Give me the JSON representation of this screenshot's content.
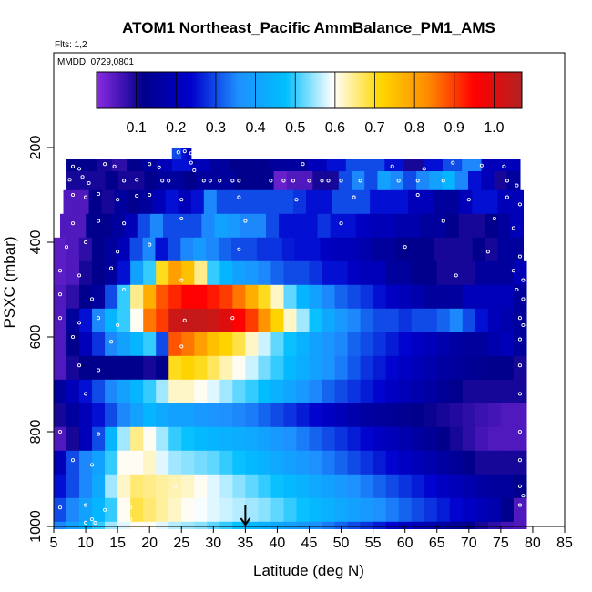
{
  "chart_data": {
    "type": "heatmap",
    "title": "ATOM1 Northeast_Pacific AmmBalance_PM1_AMS",
    "notes": [
      "Flts: 1,2",
      "MMDD: 0729,0801"
    ],
    "xlabel": "Latitude (deg N)",
    "ylabel": "PSXC (mbar)",
    "xlim": [
      5,
      85
    ],
    "ylim": [
      1000,
      0
    ],
    "x_ticks": [
      "5",
      "10",
      "15",
      "20",
      "25",
      "30",
      "35",
      "40",
      "45",
      "50",
      "55",
      "60",
      "65",
      "70",
      "75",
      "80",
      "85"
    ],
    "y_ticks": [
      "200",
      "400",
      "600",
      "800",
      "1000"
    ],
    "colorbar": {
      "range": [
        0.0,
        1.07
      ],
      "ticks": [
        "0.1",
        "0.2",
        "0.3",
        "0.4",
        "0.5",
        "0.6",
        "0.7",
        "0.8",
        "0.9",
        "1.0"
      ],
      "colors": [
        "#8a2be2",
        "#00008b",
        "#0000cd",
        "#1e90ff",
        "#00bfff",
        "#ffffff",
        "#ffd700",
        "#ff8c00",
        "#ff0000",
        "#b22222"
      ]
    },
    "grid": false,
    "marker": {
      "label": "arrow",
      "x": 35
    },
    "rows": [
      {
        "p": [
          200,
          225
        ],
        "x": [
          23.5,
          26.5
        ],
        "v": [
          0.3,
          0.3,
          0.25,
          0.2
        ]
      },
      {
        "p": [
          225,
          250
        ],
        "x": [
          7,
          23.5
        ],
        "v": [
          0.12,
          0.12,
          0.1,
          0.08,
          0.12,
          0.15,
          0.2
        ]
      },
      {
        "p": [
          225,
          250
        ],
        "x": [
          23.5,
          78
        ],
        "v": [
          0.25,
          0.2,
          0.15,
          0.12,
          0.12,
          0.15,
          0.15,
          0.2,
          0.25,
          0.3,
          0.3,
          0.25,
          0.1,
          0.25,
          0.3,
          0.35,
          0.2,
          0.2
        ]
      },
      {
        "p": [
          250,
          290
        ],
        "x": [
          7,
          78
        ],
        "v": [
          0.1,
          0.1,
          0.1,
          0.12,
          0.1,
          0.1,
          0.12,
          0.15,
          0.15,
          0.12,
          0.15,
          0.15,
          0.15,
          0.12,
          0.12,
          0.12,
          0.03,
          0.05,
          0.05,
          0.1,
          0.1,
          0.3,
          0.35,
          0.3,
          0.4,
          0.35,
          0.3,
          0.35,
          0.4,
          0.45,
          0.35,
          0.25,
          0.2,
          0.1,
          0.15
        ]
      },
      {
        "p": [
          290,
          340
        ],
        "x": [
          6.5,
          78.5
        ],
        "v": [
          0.05,
          0.05,
          0.12,
          0.1,
          0.15,
          0.12,
          0.15,
          0.2,
          0.25,
          0.2,
          0.25,
          0.35,
          0.3,
          0.3,
          0.3,
          0.3,
          0.3,
          0.3,
          0.28,
          0.25,
          0.25,
          0.3,
          0.3,
          0.3,
          0.25,
          0.25,
          0.25,
          0.2,
          0.2,
          0.15,
          0.15,
          0.2,
          0.25,
          0.25,
          0.2,
          0.2
        ]
      },
      {
        "p": [
          340,
          390
        ],
        "x": [
          6,
          78.5
        ],
        "v": [
          0.05,
          0.05,
          0.12,
          0.12,
          0.15,
          0.2,
          0.3,
          0.35,
          0.3,
          0.3,
          0.3,
          0.35,
          0.4,
          0.38,
          0.35,
          0.35,
          0.3,
          0.25,
          0.25,
          0.25,
          0.28,
          0.25,
          0.25,
          0.22,
          0.2,
          0.2,
          0.18,
          0.18,
          0.15,
          0.15,
          0.12,
          0.1,
          0.1,
          0.12,
          0.15,
          0.2
        ]
      },
      {
        "p": [
          390,
          440
        ],
        "x": [
          5,
          78.5
        ],
        "v": [
          0.04,
          0.05,
          0.08,
          0.12,
          0.15,
          0.2,
          0.3,
          0.35,
          0.25,
          0.3,
          0.35,
          0.38,
          0.35,
          0.32,
          0.3,
          0.3,
          0.28,
          0.28,
          0.26,
          0.25,
          0.25,
          0.22,
          0.2,
          0.2,
          0.18,
          0.15,
          0.15,
          0.12,
          0.12,
          0.12,
          0.1,
          0.1,
          0.1,
          0.12,
          0.1,
          0.15,
          0.15
        ]
      },
      {
        "p": [
          440,
          490
        ],
        "x": [
          5,
          79
        ],
        "v": [
          0.04,
          0.05,
          0.1,
          0.12,
          0.15,
          0.25,
          0.4,
          0.5,
          0.7,
          0.8,
          0.75,
          0.65,
          0.5,
          0.45,
          0.4,
          0.38,
          0.35,
          0.32,
          0.3,
          0.3,
          0.28,
          0.25,
          0.25,
          0.22,
          0.2,
          0.2,
          0.15,
          0.15,
          0.12,
          0.12,
          0.1,
          0.1,
          0.1,
          0.15,
          0.15,
          0.15,
          0.2
        ]
      },
      {
        "p": [
          490,
          540
        ],
        "x": [
          5,
          79
        ],
        "v": [
          0.05,
          0.08,
          0.12,
          0.15,
          0.3,
          0.5,
          0.65,
          0.78,
          0.88,
          0.92,
          0.95,
          0.95,
          0.93,
          0.9,
          0.85,
          0.78,
          0.7,
          0.62,
          0.52,
          0.45,
          0.4,
          0.35,
          0.32,
          0.3,
          0.28,
          0.25,
          0.22,
          0.2,
          0.18,
          0.15,
          0.15,
          0.15,
          0.2,
          0.2,
          0.2,
          0.2,
          0.15
        ]
      },
      {
        "p": [
          540,
          590
        ],
        "x": [
          5,
          79
        ],
        "v": [
          0.05,
          0.15,
          0.25,
          0.35,
          0.45,
          0.5,
          0.6,
          0.85,
          0.9,
          1.03,
          1.04,
          1.04,
          1.03,
          1.0,
          0.95,
          0.9,
          0.82,
          0.72,
          0.62,
          0.55,
          0.48,
          0.42,
          0.38,
          0.35,
          0.32,
          0.3,
          0.3,
          0.28,
          0.3,
          0.3,
          0.32,
          0.35,
          0.3,
          0.25,
          0.2,
          0.18,
          0.15
        ]
      },
      {
        "p": [
          590,
          640
        ],
        "x": [
          5,
          79
        ],
        "v": [
          0.05,
          0.12,
          0.2,
          0.28,
          0.35,
          0.4,
          0.45,
          0.5,
          0.3,
          0.88,
          0.85,
          0.8,
          0.75,
          0.72,
          0.68,
          0.62,
          0.57,
          0.52,
          0.48,
          0.44,
          0.4,
          0.37,
          0.35,
          0.32,
          0.3,
          0.28,
          0.26,
          0.24,
          0.22,
          0.2,
          0.18,
          0.16,
          0.15,
          0.15,
          0.18,
          0.2,
          0.15
        ]
      },
      {
        "p": [
          640,
          690
        ],
        "x": [
          5,
          79
        ],
        "v": [
          0.05,
          0.1,
          0.12,
          0.12,
          0.12,
          0.12,
          0.12,
          0.1,
          0.12,
          0.7,
          0.72,
          0.7,
          0.67,
          0.63,
          0.6,
          0.57,
          0.53,
          0.5,
          0.46,
          0.43,
          0.4,
          0.37,
          0.34,
          0.31,
          0.28,
          0.26,
          0.24,
          0.22,
          0.2,
          0.18,
          0.16,
          0.15,
          0.14,
          0.13,
          0.12,
          0.12,
          0.1
        ]
      },
      {
        "p": [
          690,
          740
        ],
        "x": [
          5,
          79
        ],
        "v": [
          0.15,
          0.2,
          0.25,
          0.3,
          0.35,
          0.4,
          0.45,
          0.5,
          0.55,
          0.62,
          0.62,
          0.6,
          0.58,
          0.55,
          0.52,
          0.5,
          0.47,
          0.44,
          0.41,
          0.38,
          0.35,
          0.32,
          0.3,
          0.28,
          0.26,
          0.24,
          0.22,
          0.2,
          0.18,
          0.16,
          0.14,
          0.12,
          0.1,
          0.1,
          0.1,
          0.1,
          0.1
        ]
      },
      {
        "p": [
          740,
          790
        ],
        "x": [
          5,
          79
        ],
        "v": [
          0.1,
          0.15,
          0.2,
          0.25,
          0.3,
          0.35,
          0.4,
          0.45,
          0.42,
          0.4,
          0.4,
          0.38,
          0.37,
          0.36,
          0.35,
          0.34,
          0.32,
          0.3,
          0.28,
          0.26,
          0.24,
          0.22,
          0.2,
          0.18,
          0.16,
          0.15,
          0.14,
          0.13,
          0.12,
          0.11,
          0.1,
          0.09,
          0.08,
          0.07,
          0.06,
          0.05,
          0.05
        ]
      },
      {
        "p": [
          790,
          840
        ],
        "x": [
          5,
          79
        ],
        "v": [
          0.05,
          0.1,
          0.2,
          0.3,
          0.45,
          0.55,
          0.65,
          0.6,
          0.55,
          0.5,
          0.48,
          0.46,
          0.45,
          0.44,
          0.43,
          0.42,
          0.4,
          0.38,
          0.36,
          0.34,
          0.32,
          0.3,
          0.28,
          0.26,
          0.24,
          0.22,
          0.2,
          0.18,
          0.16,
          0.14,
          0.12,
          0.1,
          0.08,
          0.06,
          0.05,
          0.05,
          0.05
        ]
      },
      {
        "p": [
          840,
          890
        ],
        "x": [
          5,
          79
        ],
        "v": [
          0.2,
          0.3,
          0.35,
          0.4,
          0.5,
          0.6,
          0.6,
          0.62,
          0.58,
          0.55,
          0.54,
          0.53,
          0.52,
          0.5,
          0.48,
          0.46,
          0.44,
          0.42,
          0.4,
          0.38,
          0.36,
          0.34,
          0.32,
          0.3,
          0.28,
          0.26,
          0.24,
          0.22,
          0.2,
          0.18,
          0.16,
          0.14,
          0.12,
          0.1,
          0.1,
          0.1,
          0.1
        ]
      },
      {
        "p": [
          890,
          940
        ],
        "x": [
          5,
          79
        ],
        "v": [
          0.25,
          0.3,
          0.35,
          0.42,
          0.55,
          0.62,
          0.66,
          0.65,
          0.64,
          0.63,
          0.62,
          0.6,
          0.58,
          0.56,
          0.54,
          0.52,
          0.5,
          0.48,
          0.46,
          0.44,
          0.42,
          0.4,
          0.38,
          0.36,
          0.34,
          0.32,
          0.3,
          0.28,
          0.26,
          0.24,
          0.22,
          0.2,
          0.18,
          0.16,
          0.15,
          0.15,
          0.12
        ]
      },
      {
        "p": [
          940,
          990
        ],
        "x": [
          5,
          79
        ],
        "v": [
          0.3,
          0.35,
          0.4,
          0.45,
          0.5,
          0.6,
          0.68,
          0.66,
          0.64,
          0.62,
          0.6,
          0.59,
          0.58,
          0.57,
          0.56,
          0.55,
          0.54,
          0.52,
          0.5,
          0.48,
          0.46,
          0.44,
          0.42,
          0.4,
          0.38,
          0.36,
          0.34,
          0.32,
          0.3,
          0.28,
          0.26,
          0.24,
          0.22,
          0.2,
          0.18,
          0.12,
          0.05
        ]
      },
      {
        "p": [
          990,
          1005
        ],
        "x": [
          5,
          79
        ],
        "v": [
          0.35,
          0.4,
          0.45,
          0.5,
          0.55,
          0.58,
          0.6,
          0.6,
          0.58,
          0.56,
          0.55,
          0.54,
          0.52,
          0.5,
          0.48,
          0.46,
          0.44,
          0.42,
          0.4,
          0.38,
          0.36,
          0.34,
          0.32,
          0.3,
          0.28,
          0.26,
          0.24,
          0.22,
          0.2,
          0.18,
          0.16,
          0.14,
          0.12,
          0.1,
          0.08,
          0.06,
          0.05
        ]
      }
    ],
    "points": [
      [
        24.5,
        210
      ],
      [
        25.5,
        208
      ],
      [
        26.5,
        212
      ],
      [
        8,
        240
      ],
      [
        9,
        245
      ],
      [
        13,
        235
      ],
      [
        14.5,
        240
      ],
      [
        20,
        235
      ],
      [
        21.5,
        242
      ],
      [
        26.5,
        232
      ],
      [
        27,
        248
      ],
      [
        44,
        235
      ],
      [
        58,
        240
      ],
      [
        63,
        245
      ],
      [
        67.5,
        232
      ],
      [
        72,
        238
      ],
      [
        75.5,
        240
      ],
      [
        7.5,
        268
      ],
      [
        9.5,
        262
      ],
      [
        10.5,
        275
      ],
      [
        16,
        270
      ],
      [
        18,
        268
      ],
      [
        22,
        270
      ],
      [
        23,
        270
      ],
      [
        28.5,
        270
      ],
      [
        29.5,
        270
      ],
      [
        31,
        270
      ],
      [
        33,
        270
      ],
      [
        34,
        270
      ],
      [
        39,
        270
      ],
      [
        41,
        270
      ],
      [
        42.5,
        270
      ],
      [
        45,
        270
      ],
      [
        47,
        270
      ],
      [
        48,
        270
      ],
      [
        50,
        270
      ],
      [
        53,
        270
      ],
      [
        59,
        270
      ],
      [
        62,
        270
      ],
      [
        66,
        270
      ],
      [
        76,
        270
      ],
      [
        77.5,
        280
      ],
      [
        8,
        300
      ],
      [
        10,
        305
      ],
      [
        12,
        298
      ],
      [
        15,
        310
      ],
      [
        18,
        302
      ],
      [
        20,
        300
      ],
      [
        25,
        310
      ],
      [
        34,
        305
      ],
      [
        43,
        310
      ],
      [
        52,
        305
      ],
      [
        62,
        300
      ],
      [
        70,
        310
      ],
      [
        76,
        305
      ],
      [
        78,
        320
      ],
      [
        8,
        360
      ],
      [
        12,
        355
      ],
      [
        16,
        360
      ],
      [
        25,
        350
      ],
      [
        35,
        355
      ],
      [
        50,
        360
      ],
      [
        66,
        355
      ],
      [
        74,
        350
      ],
      [
        77,
        370
      ],
      [
        7,
        410
      ],
      [
        10,
        400
      ],
      [
        15,
        420
      ],
      [
        20,
        405
      ],
      [
        34,
        415
      ],
      [
        60,
        410
      ],
      [
        73,
        420
      ],
      [
        78,
        430
      ],
      [
        6,
        460
      ],
      [
        9,
        470
      ],
      [
        14,
        455
      ],
      [
        25,
        480
      ],
      [
        68,
        470
      ],
      [
        77,
        460
      ],
      [
        78.5,
        480
      ],
      [
        6,
        510
      ],
      [
        11,
        520
      ],
      [
        16,
        500
      ],
      [
        77.5,
        500
      ],
      [
        78.5,
        520
      ],
      [
        6,
        560
      ],
      [
        9,
        570
      ],
      [
        12,
        560
      ],
      [
        15,
        575
      ],
      [
        25.5,
        565
      ],
      [
        33,
        560
      ],
      [
        78,
        560
      ],
      [
        78.5,
        575
      ],
      [
        8,
        600
      ],
      [
        14,
        610
      ],
      [
        25,
        620
      ],
      [
        78,
        605
      ],
      [
        9,
        660
      ],
      [
        12,
        670
      ],
      [
        78,
        660
      ],
      [
        10,
        720
      ],
      [
        78,
        720
      ],
      [
        6,
        800
      ],
      [
        12,
        805
      ],
      [
        78,
        800
      ],
      [
        8,
        860
      ],
      [
        11,
        870
      ],
      [
        78,
        860
      ],
      [
        24,
        915
      ],
      [
        78,
        915
      ],
      [
        78.5,
        935
      ],
      [
        6,
        960
      ],
      [
        10,
        955
      ],
      [
        13,
        965
      ],
      [
        17,
        960
      ],
      [
        78,
        955
      ],
      [
        11,
        985
      ],
      [
        10,
        992
      ],
      [
        11.5,
        992
      ],
      [
        17,
        985
      ]
    ]
  }
}
